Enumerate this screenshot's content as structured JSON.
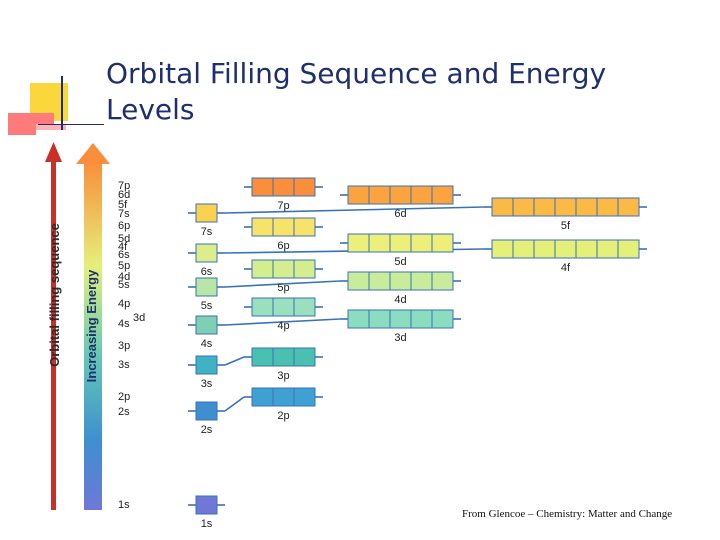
{
  "slide": {
    "title": "Orbital Filling Sequence and Energy Levels",
    "credit": "From Glencoe – Chemistry: Matter and Change"
  },
  "diagram": {
    "red_arrow_label": "Orbital filling sequence",
    "gradient_arrow_label": "Increasing Energy",
    "filling_order": [
      "1s",
      "2s",
      "2p",
      "3s",
      "3p",
      "4s",
      "3d",
      "4p",
      "5s",
      "4d",
      "5p",
      "6s",
      "4f",
      "5d",
      "6p",
      "7s",
      "5f",
      "6d",
      "7p"
    ],
    "sublevels": [
      {
        "label": "1s",
        "color": "#6f78d6"
      },
      {
        "label": "2s",
        "color": "#3f8fd0"
      },
      {
        "label": "2p",
        "color": "#3fa0d4"
      },
      {
        "label": "3s",
        "color": "#3fb3c2"
      },
      {
        "label": "3p",
        "color": "#49c0b0"
      },
      {
        "label": "4s",
        "color": "#7fd0b2"
      },
      {
        "label": "3d",
        "color": "#8cdcc0"
      },
      {
        "label": "4p",
        "color": "#9adfbe"
      },
      {
        "label": "5s",
        "color": "#b8e6a8"
      },
      {
        "label": "4d",
        "color": "#c8ec9c"
      },
      {
        "label": "5p",
        "color": "#d4ee8f"
      },
      {
        "label": "6s",
        "color": "#dcee8c"
      },
      {
        "label": "4f",
        "color": "#e4f07a"
      },
      {
        "label": "5d",
        "color": "#ecf07a"
      },
      {
        "label": "6p",
        "color": "#f7e36a"
      },
      {
        "label": "7s",
        "color": "#fbd250"
      },
      {
        "label": "5f",
        "color": "#fbb945"
      },
      {
        "label": "6d",
        "color": "#fba43f"
      },
      {
        "label": "7p",
        "color": "#fa8e3a"
      }
    ],
    "colors": {
      "red_arrow": "#c8302a",
      "connector": "#3a72b8",
      "box_border": "#3a72b8",
      "title": "#1f2f6e"
    }
  }
}
